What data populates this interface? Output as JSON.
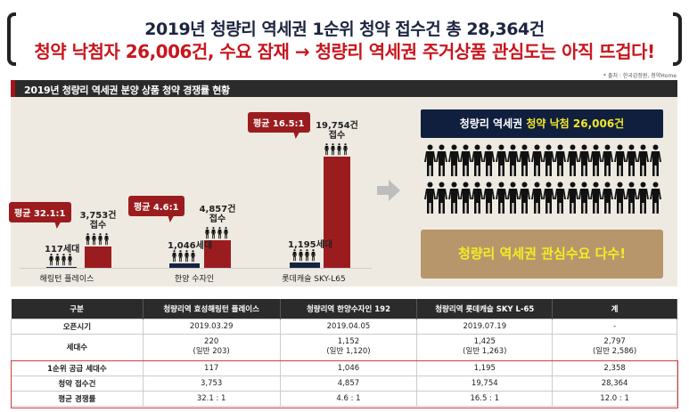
{
  "header": {
    "line1": "2019년 청량리 역세권 1순위 청약 접수건 총 28,364건",
    "line2": "청약 낙첨자 26,006건, 수요 잠재 → 청량리 역세권 주거상품 관심도는 아직 뜨겁다!"
  },
  "source": "* 출처 : 한국감정원, 청약Home",
  "section_title": "2019년 청량리 역세권 분양 상품 청약 경쟁률 현황",
  "chart_data": {
    "type": "bar",
    "title": "2019년 청량리 역세권 분양 상품 청약 경쟁률 현황",
    "categories": [
      "해링턴 플레이스",
      "한양 수자인",
      "롯데캐슬 SKY-L65"
    ],
    "series": [
      {
        "name": "1순위 공급 세대수",
        "values": [
          117,
          1046,
          1195
        ],
        "labels": [
          "117세대",
          "1,046세대",
          "1,195세대"
        ],
        "color": "#14233f"
      },
      {
        "name": "청약 접수건",
        "values": [
          3753,
          4857,
          19754
        ],
        "labels": [
          "3,753건",
          "4,857건",
          "19,754건"
        ],
        "sub": "접수",
        "color": "#9b1c1f"
      }
    ],
    "ratios": [
      "평균 32.1:1",
      "평균 4.6:1",
      "평균 16.5:1"
    ],
    "ylim": [
      0,
      19754
    ]
  },
  "right": {
    "box_white": "청량리 역세권 ",
    "box_yellow": "청약 낙첨 26,006건",
    "callout": "청량리 역세권 관심수요 다수!",
    "people_count": 40
  },
  "table": {
    "headers": [
      "구분",
      "청량리역 효성해링턴 플레이스",
      "청량리역 한양수자인 192",
      "청량리역 롯데캐슬 SKY L-65",
      "계"
    ],
    "rows": [
      [
        "오픈시기",
        "2019.03.29",
        "2019.04.05",
        "2019.07.19",
        "-"
      ],
      [
        "세대수",
        "220\n(일반 203)",
        "1,152\n(일반 1,120)",
        "1,425\n(일반 1,263)",
        "2,797\n(일반 2,586)"
      ],
      [
        "1순위 공급 세대수",
        "117",
        "1,046",
        "1,195",
        "2,358"
      ],
      [
        "청약 접수건",
        "3,753",
        "4,857",
        "19,754",
        "28,364"
      ],
      [
        "평균 경쟁률",
        "32.1 : 1",
        "4.6 : 1",
        "16.5 : 1",
        "12.0 : 1"
      ]
    ]
  }
}
